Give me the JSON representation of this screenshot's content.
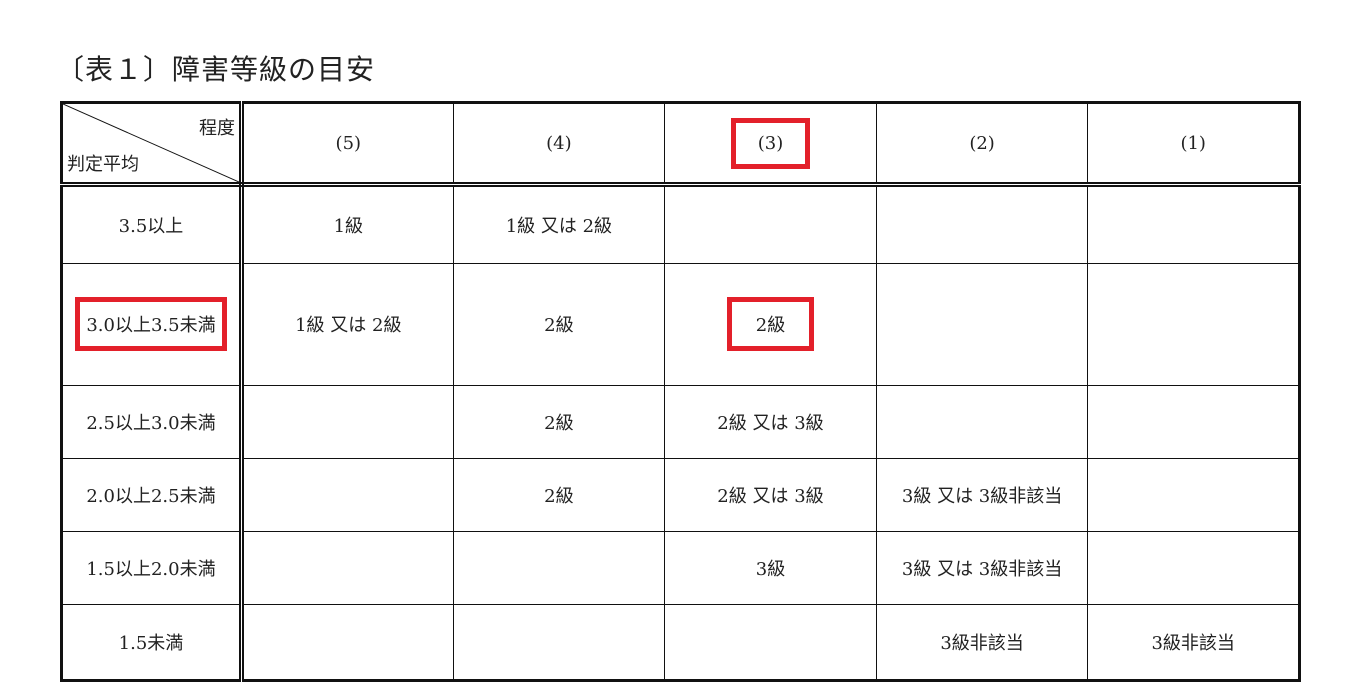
{
  "title": "〔表１〕障害等級の目安",
  "table": {
    "corner": {
      "top_right": "程度",
      "bottom_left": "判定平均"
    },
    "columns": [
      "(5)",
      "(4)",
      "(3)",
      "(2)",
      "(1)"
    ],
    "rows": [
      {
        "label": "3.5以上",
        "cells": [
          "1級",
          "1級 又は 2級",
          "",
          "",
          ""
        ]
      },
      {
        "label": "3.0以上3.5未満",
        "cells": [
          "1級 又は 2級",
          "2級",
          "2級",
          "",
          ""
        ]
      },
      {
        "label": "2.5以上3.0未満",
        "cells": [
          "",
          "2級",
          "2級 又は 3級",
          "",
          ""
        ]
      },
      {
        "label": "2.0以上2.5未満",
        "cells": [
          "",
          "2級",
          "2級 又は 3級",
          "3級 又は 3級非該当",
          ""
        ]
      },
      {
        "label": "1.5以上2.0未満",
        "cells": [
          "",
          "",
          "3級",
          "3級 又は 3級非該当",
          ""
        ]
      },
      {
        "label": "1.5未満",
        "cells": [
          "",
          "",
          "",
          "3級非該当",
          "3級非該当"
        ]
      }
    ]
  },
  "highlight_color": "#e3202a"
}
